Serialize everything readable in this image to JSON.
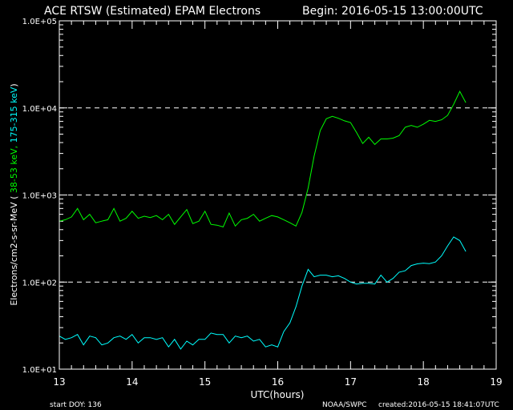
{
  "header": {
    "title": "ACE RTSW (Estimated) EPAM Electrons",
    "begin": "Begin: 2016-05-15 13:00:00UTC"
  },
  "footer": {
    "start_doy": "start DOY:  136",
    "credit": "NOAA/SWPC",
    "created": "created:2016-05-15 18:41:07UTC"
  },
  "colors": {
    "background": "#000000",
    "axes": "#ffffff",
    "green": "#00ff00",
    "cyan": "#00ffff"
  },
  "chart_data": {
    "type": "line",
    "title": "ACE RTSW (Estimated) EPAM Electrons",
    "xlabel": "UTC(hours)",
    "ylabel": {
      "prefix": "Electrons/cm2-s-sr-MeV  (",
      "green_part": " 38-53 keV,",
      "cyan_part": " 175-315 keV",
      "suffix": ")"
    },
    "xlim": [
      13,
      19
    ],
    "ylim": [
      10,
      100000
    ],
    "yscale": "log",
    "x_ticks": [
      "13",
      "14",
      "15",
      "16",
      "17",
      "18",
      "19"
    ],
    "y_ticks": [
      "1.0E+01",
      "1.0E+02",
      "1.0E+03",
      "1.0E+04",
      "1.0E+05"
    ],
    "reference_lines": [
      100,
      1000,
      10000
    ],
    "series": [
      {
        "name": "38-53 keV",
        "color": "#00ff00",
        "x": [
          13.0,
          13.083,
          13.167,
          13.25,
          13.333,
          13.417,
          13.5,
          13.583,
          13.667,
          13.75,
          13.833,
          13.917,
          14.0,
          14.083,
          14.167,
          14.25,
          14.333,
          14.417,
          14.5,
          14.583,
          14.667,
          14.75,
          14.833,
          14.917,
          15.0,
          15.083,
          15.167,
          15.25,
          15.333,
          15.417,
          15.5,
          15.583,
          15.667,
          15.75,
          15.833,
          15.917,
          16.0,
          16.083,
          16.167,
          16.25,
          16.333,
          16.417,
          16.5,
          16.583,
          16.667,
          16.75,
          16.833,
          16.917,
          17.0,
          17.083,
          17.167,
          17.25,
          17.333,
          17.417,
          17.5,
          17.583,
          17.667,
          17.75,
          17.833,
          17.917,
          18.0,
          18.083,
          18.167,
          18.25,
          18.333,
          18.417,
          18.5,
          18.583
        ],
        "y": [
          500,
          520,
          560,
          700,
          520,
          600,
          480,
          500,
          520,
          700,
          500,
          540,
          650,
          540,
          570,
          550,
          580,
          520,
          600,
          460,
          560,
          680,
          470,
          500,
          650,
          460,
          450,
          430,
          620,
          440,
          520,
          540,
          600,
          500,
          540,
          580,
          560,
          520,
          480,
          440,
          630,
          1200,
          2800,
          5500,
          7500,
          8000,
          7600,
          7100,
          6800,
          5200,
          3900,
          4600,
          3800,
          4400,
          4400,
          4500,
          4800,
          6000,
          6300,
          6000,
          6500,
          7200,
          7000,
          7300,
          8200,
          11000,
          15500,
          11500
        ]
      },
      {
        "name": "175-315 keV",
        "color": "#00ffff",
        "x": [
          13.0,
          13.083,
          13.167,
          13.25,
          13.333,
          13.417,
          13.5,
          13.583,
          13.667,
          13.75,
          13.833,
          13.917,
          14.0,
          14.083,
          14.167,
          14.25,
          14.333,
          14.417,
          14.5,
          14.583,
          14.667,
          14.75,
          14.833,
          14.917,
          15.0,
          15.083,
          15.167,
          15.25,
          15.333,
          15.417,
          15.5,
          15.583,
          15.667,
          15.75,
          15.833,
          15.917,
          16.0,
          16.083,
          16.167,
          16.25,
          16.333,
          16.417,
          16.5,
          16.583,
          16.667,
          16.75,
          16.833,
          16.917,
          17.0,
          17.083,
          17.167,
          17.25,
          17.333,
          17.417,
          17.5,
          17.583,
          17.667,
          17.75,
          17.833,
          17.917,
          18.0,
          18.083,
          18.167,
          18.25,
          18.333,
          18.417,
          18.5,
          18.583
        ],
        "y": [
          24,
          22,
          23,
          25,
          19,
          24,
          23,
          19,
          20,
          23,
          24,
          22,
          25,
          20,
          23,
          23,
          22,
          23,
          18,
          22,
          17,
          21,
          19,
          22,
          22,
          26,
          25,
          25,
          20,
          24,
          23,
          24,
          21,
          22,
          18,
          19,
          18,
          27,
          34,
          52,
          90,
          140,
          115,
          120,
          120,
          115,
          118,
          110,
          100,
          95,
          97,
          97,
          95,
          120,
          100,
          110,
          130,
          135,
          155,
          162,
          165,
          163,
          170,
          200,
          260,
          330,
          300,
          225
        ]
      }
    ]
  }
}
